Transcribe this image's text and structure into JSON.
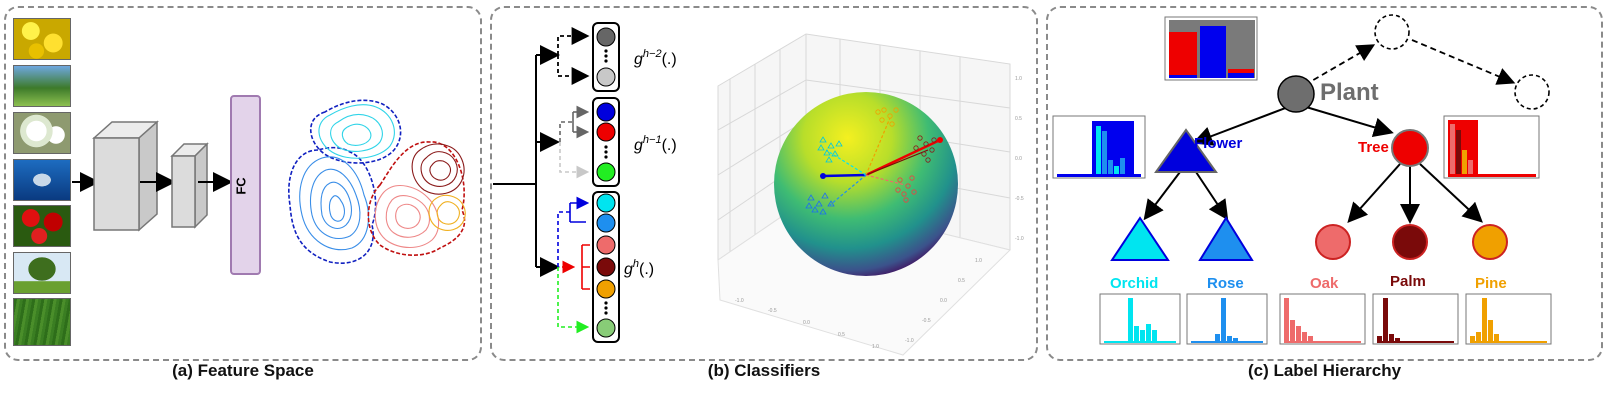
{
  "panels": {
    "a": {
      "caption": "(a) Feature Space",
      "fc_label": "FC"
    },
    "b": {
      "caption": "(b) Classifiers",
      "g_base": "g",
      "g_sup": [
        "h−2",
        "h−1",
        "h"
      ],
      "g_args": "(.)"
    },
    "c": {
      "caption": "(c) Label Hierarchy"
    }
  },
  "hierarchy": {
    "root": {
      "label": "Plant",
      "color": "#6e6e6e"
    },
    "level1": [
      {
        "label": "Flower",
        "color": "#0000dd"
      },
      {
        "label": "Tree",
        "color": "#ee0000"
      }
    ],
    "leaves": [
      {
        "label": "Orchid",
        "color": "#00e5f0"
      },
      {
        "label": "Rose",
        "color": "#1e8fef"
      },
      {
        "label": "Oak",
        "color": "#ee6b6b"
      },
      {
        "label": "Palm",
        "color": "#7a0a0a"
      },
      {
        "label": "Pine",
        "color": "#f0a000"
      }
    ]
  },
  "colors": {
    "gray_dark": "#666666",
    "gray_light": "#c8c8c8",
    "blue": "#0000dd",
    "red": "#ee0000",
    "green": "#22ee22",
    "cyan": "#00e5f0",
    "azure": "#1e8fef",
    "salmon": "#ee6b6b",
    "maroon": "#7a0a0a",
    "orange": "#f0a000",
    "lightgreen": "#88cc77",
    "fc_fill": "#e3d3ea",
    "fc_border": "#a07ab0"
  }
}
